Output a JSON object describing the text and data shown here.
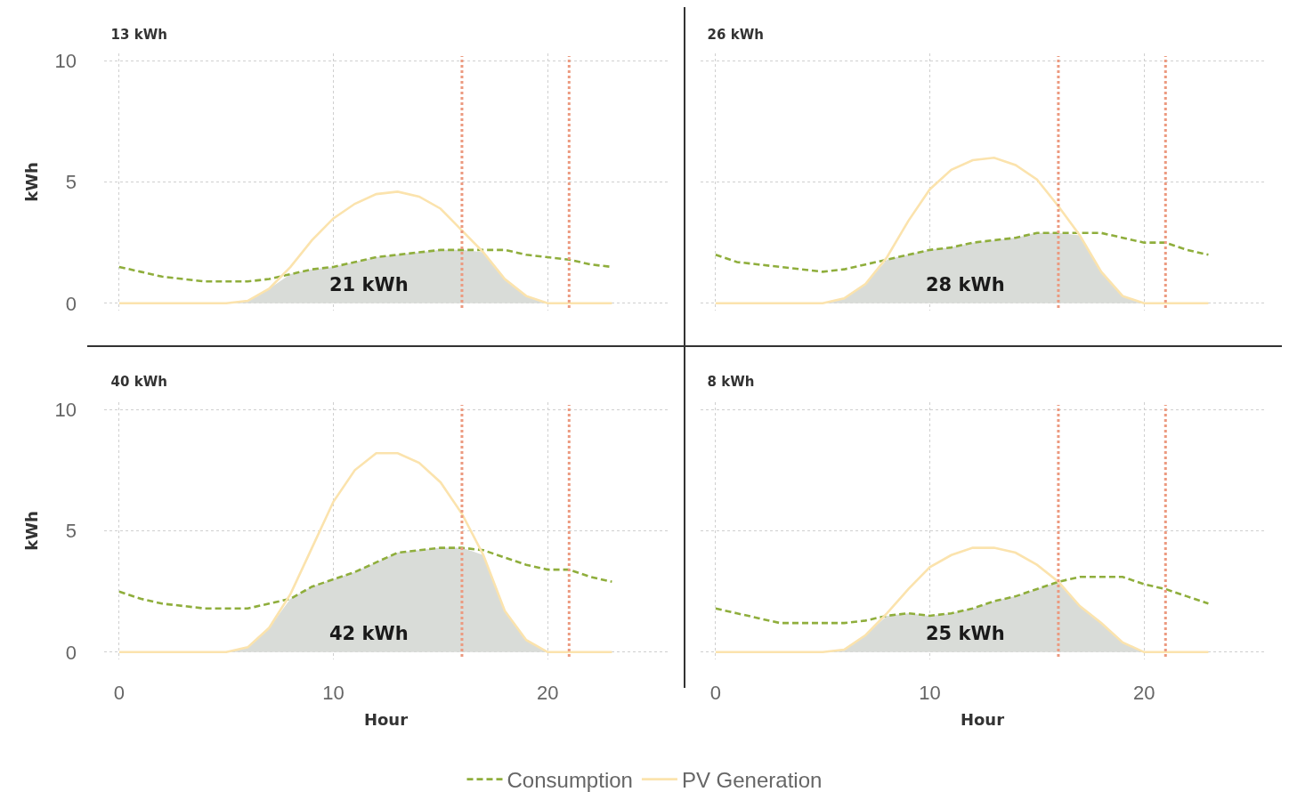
{
  "chart_data": [
    {
      "type": "line",
      "title": "13 kWh",
      "ylabel": "kWh",
      "x": [
        0,
        1,
        2,
        3,
        4,
        5,
        6,
        7,
        8,
        9,
        10,
        11,
        12,
        13,
        14,
        15,
        16,
        17,
        18,
        19,
        20,
        21,
        22,
        23
      ],
      "series": [
        {
          "type": "area",
          "color": "#d9dcd8",
          "values": [
            0,
            0,
            0,
            0,
            0,
            0,
            0.1,
            0.6,
            1.2,
            1.4,
            1.5,
            1.7,
            1.9,
            2.0,
            2.1,
            2.2,
            2.2,
            2.1,
            1.0,
            0.3,
            0,
            0,
            0,
            0
          ]
        },
        {
          "color": "#8fae3c",
          "line_style": "dashed",
          "values": [
            1.5,
            1.3,
            1.1,
            1.0,
            0.9,
            0.9,
            0.9,
            1.0,
            1.2,
            1.4,
            1.5,
            1.7,
            1.9,
            2.0,
            2.1,
            2.2,
            2.2,
            2.2,
            2.2,
            2.0,
            1.9,
            1.8,
            1.6,
            1.5
          ]
        },
        {
          "color": "#fbe3ad",
          "line_style": "solid",
          "values": [
            0,
            0,
            0,
            0,
            0,
            0,
            0.1,
            0.6,
            1.5,
            2.6,
            3.5,
            4.1,
            4.5,
            4.6,
            4.4,
            3.9,
            3.0,
            2.1,
            1.0,
            0.3,
            0,
            0,
            0,
            0
          ]
        }
      ],
      "annotations": [
        "21 kWh"
      ],
      "ref_lines": [
        {
          "axis": "x",
          "value": 16,
          "color": "#ec9a80",
          "line_style": "dotted"
        },
        {
          "axis": "x",
          "value": 21,
          "color": "#ec9a80",
          "line_style": "dotted"
        }
      ],
      "xlim": [
        -0.7,
        25.6
      ],
      "ylim": [
        -0.3,
        10.3
      ],
      "xticks": [
        0,
        10,
        20
      ],
      "yticks": [
        0,
        5,
        10
      ],
      "grid": true,
      "legend": false,
      "tick_labels": "y"
    },
    {
      "type": "line",
      "title": "26 kWh",
      "x": [
        0,
        1,
        2,
        3,
        4,
        5,
        6,
        7,
        8,
        9,
        10,
        11,
        12,
        13,
        14,
        15,
        16,
        17,
        18,
        19,
        20,
        21,
        22,
        23
      ],
      "series": [
        {
          "type": "area",
          "color": "#d9dcd8",
          "values": [
            0,
            0,
            0,
            0,
            0,
            0,
            0.2,
            0.8,
            1.8,
            2.0,
            2.2,
            2.3,
            2.5,
            2.6,
            2.7,
            2.9,
            2.9,
            2.8,
            1.3,
            0.3,
            0,
            0,
            0,
            0
          ]
        },
        {
          "color": "#8fae3c",
          "line_style": "dashed",
          "values": [
            2.0,
            1.7,
            1.6,
            1.5,
            1.4,
            1.3,
            1.4,
            1.6,
            1.8,
            2.0,
            2.2,
            2.3,
            2.5,
            2.6,
            2.7,
            2.9,
            2.9,
            2.9,
            2.9,
            2.7,
            2.5,
            2.5,
            2.2,
            2.0
          ]
        },
        {
          "color": "#fbe3ad",
          "line_style": "solid",
          "values": [
            0,
            0,
            0,
            0,
            0,
            0,
            0.2,
            0.8,
            1.9,
            3.4,
            4.7,
            5.5,
            5.9,
            6.0,
            5.7,
            5.1,
            4.0,
            2.8,
            1.3,
            0.3,
            0,
            0,
            0,
            0
          ]
        }
      ],
      "annotations": [
        "28 kWh"
      ],
      "ref_lines": [
        {
          "axis": "x",
          "value": 16,
          "color": "#ec9a80",
          "line_style": "dotted"
        },
        {
          "axis": "x",
          "value": 21,
          "color": "#ec9a80",
          "line_style": "dotted"
        }
      ],
      "xlim": [
        -0.7,
        25.6
      ],
      "ylim": [
        -0.3,
        10.3
      ],
      "xticks": [
        0,
        10,
        20
      ],
      "yticks": [
        0,
        5,
        10
      ],
      "grid": true,
      "legend": false,
      "tick_labels": false
    },
    {
      "type": "line",
      "title": "40 kWh",
      "xlabel": "Hour",
      "ylabel": "kWh",
      "x": [
        0,
        1,
        2,
        3,
        4,
        5,
        6,
        7,
        8,
        9,
        10,
        11,
        12,
        13,
        14,
        15,
        16,
        17,
        18,
        19,
        20,
        21,
        22,
        23
      ],
      "series": [
        {
          "type": "area",
          "color": "#d9dcd8",
          "values": [
            0,
            0,
            0,
            0,
            0,
            0,
            0.2,
            1.0,
            2.2,
            2.7,
            3.0,
            3.3,
            3.7,
            4.1,
            4.2,
            4.3,
            4.3,
            4.0,
            1.7,
            0.5,
            0,
            0,
            0,
            0
          ]
        },
        {
          "name": "Consumption",
          "color": "#8fae3c",
          "line_style": "dashed",
          "values": [
            2.5,
            2.2,
            2.0,
            1.9,
            1.8,
            1.8,
            1.8,
            2.0,
            2.2,
            2.7,
            3.0,
            3.3,
            3.7,
            4.1,
            4.2,
            4.3,
            4.3,
            4.2,
            3.9,
            3.6,
            3.4,
            3.4,
            3.1,
            2.9
          ]
        },
        {
          "name": "PV Generation",
          "color": "#fbe3ad",
          "line_style": "solid",
          "values": [
            0,
            0,
            0,
            0,
            0,
            0,
            0.2,
            1.0,
            2.4,
            4.3,
            6.2,
            7.5,
            8.2,
            8.2,
            7.8,
            7.0,
            5.7,
            4.0,
            1.7,
            0.5,
            0,
            0,
            0,
            0
          ]
        }
      ],
      "annotations": [
        "42 kWh"
      ],
      "ref_lines": [
        {
          "axis": "x",
          "value": 16,
          "color": "#ec9a80",
          "line_style": "dotted"
        },
        {
          "axis": "x",
          "value": 21,
          "color": "#ec9a80",
          "line_style": "dotted"
        }
      ],
      "xlim": [
        -0.7,
        25.6
      ],
      "ylim": [
        -0.3,
        10.3
      ],
      "xticks": [
        0,
        10,
        20
      ],
      "yticks": [
        0,
        5,
        10
      ],
      "grid": true,
      "legend": "bottom"
    },
    {
      "type": "line",
      "title": "8 kWh",
      "xlabel": "Hour",
      "x": [
        0,
        1,
        2,
        3,
        4,
        5,
        6,
        7,
        8,
        9,
        10,
        11,
        12,
        13,
        14,
        15,
        16,
        17,
        18,
        19,
        20,
        21,
        22,
        23
      ],
      "series": [
        {
          "type": "area",
          "color": "#d9dcd8",
          "values": [
            0,
            0,
            0,
            0,
            0,
            0,
            0.1,
            0.7,
            1.5,
            1.6,
            1.5,
            1.6,
            1.8,
            2.1,
            2.3,
            2.6,
            2.9,
            1.9,
            1.2,
            0.4,
            0,
            0,
            0,
            0
          ]
        },
        {
          "color": "#8fae3c",
          "line_style": "dashed",
          "values": [
            1.8,
            1.6,
            1.4,
            1.2,
            1.2,
            1.2,
            1.2,
            1.3,
            1.5,
            1.6,
            1.5,
            1.6,
            1.8,
            2.1,
            2.3,
            2.6,
            2.9,
            3.1,
            3.1,
            3.1,
            2.8,
            2.6,
            2.3,
            2.0
          ]
        },
        {
          "color": "#fbe3ad",
          "line_style": "solid",
          "values": [
            0,
            0,
            0,
            0,
            0,
            0,
            0.1,
            0.7,
            1.6,
            2.6,
            3.5,
            4.0,
            4.3,
            4.3,
            4.1,
            3.6,
            2.9,
            1.9,
            1.2,
            0.4,
            0,
            0,
            0,
            0
          ]
        }
      ],
      "annotations": [
        "25 kWh"
      ],
      "ref_lines": [
        {
          "axis": "x",
          "value": 16,
          "color": "#ec9a80",
          "line_style": "dotted"
        },
        {
          "axis": "x",
          "value": 21,
          "color": "#ec9a80",
          "line_style": "dotted"
        }
      ],
      "xlim": [
        -0.7,
        25.6
      ],
      "ylim": [
        -0.3,
        10.3
      ],
      "xticks": [
        0,
        10,
        20
      ],
      "yticks": [
        0,
        5,
        10
      ],
      "grid": true,
      "legend": false,
      "tick_labels": "x"
    }
  ]
}
